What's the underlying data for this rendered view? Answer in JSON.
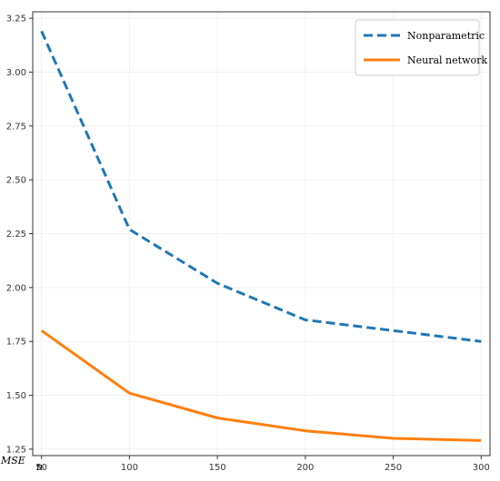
{
  "chart_data": {
    "type": "line",
    "title": "",
    "xlabel": "n",
    "ylabel": "MSE",
    "x": [
      50,
      100,
      150,
      200,
      250,
      300
    ],
    "xticks": [
      "50",
      "100",
      "150",
      "200",
      "250",
      "300"
    ],
    "yticks": [
      "1.25",
      "1.50",
      "1.75",
      "2.00",
      "2.25",
      "2.50",
      "2.75",
      "3.00",
      "3.25"
    ],
    "xlim": [
      45,
      305
    ],
    "ylim": [
      1.22,
      3.28
    ],
    "grid": true,
    "legend_position": "top-right",
    "series": [
      {
        "name": "Nonparametric",
        "style": "dashed",
        "color": "#1f77b4",
        "values": [
          3.19,
          2.27,
          2.02,
          1.85,
          1.8,
          1.75
        ]
      },
      {
        "name": "Neural network",
        "style": "solid",
        "color": "#ff7f0e",
        "values": [
          1.8,
          1.51,
          1.395,
          1.335,
          1.3,
          1.29
        ]
      }
    ]
  }
}
